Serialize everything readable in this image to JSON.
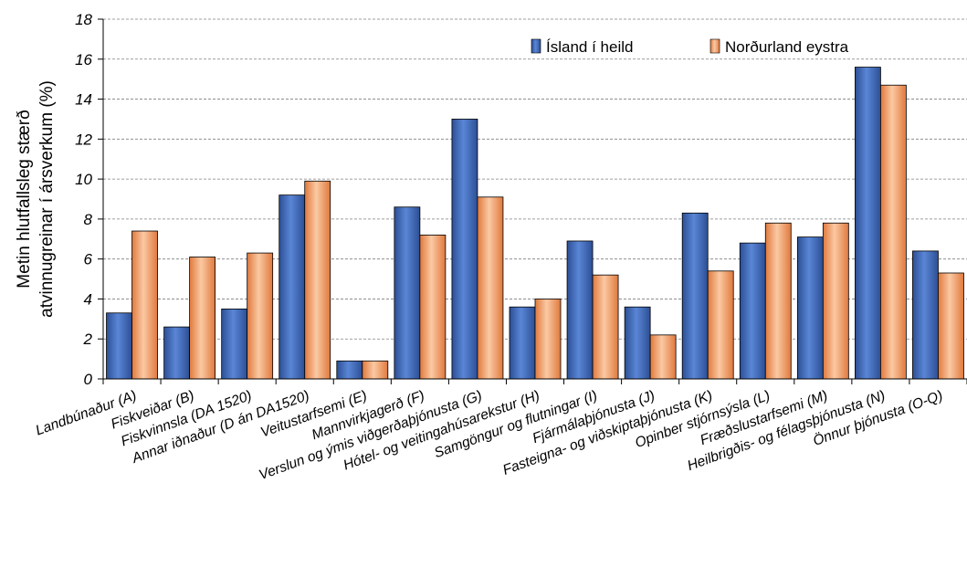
{
  "chart_data": {
    "type": "bar",
    "ylabel_line1": "Metin hlutfallsleg stærð",
    "ylabel_line2": "atvinnugreinar í ársverkum (%)",
    "ylim": [
      0,
      18
    ],
    "yticks": [
      "0",
      "2",
      "4",
      "6",
      "8",
      "10",
      "12",
      "14",
      "16",
      "18"
    ],
    "grid": true,
    "legend_position": "top-right",
    "categories": [
      "Landbúnaður (A)",
      "Fiskveiðar (B)",
      "Fiskvinnsla (DA 1520)",
      "Annar iðnaður (D án DA1520)",
      "Veitustarfsemi (E)",
      "Mannvirkjagerð (F)",
      "Verslun og ýmis viðgerðaþjónusta (G)",
      "Hótel- og veitingahúsarekstur (H)",
      "Samgöngur og flutningar (I)",
      "Fjármálaþjónusta (J)",
      "Fasteigna- og viðskiptaþjónusta (K)",
      "Opinber stjórnsýsla (L)",
      "Fræðslustarfsemi (M)",
      "Heilbrigðis- og félagsþjónusta (N)",
      "Önnur þjónusta (O-Q)"
    ],
    "series": [
      {
        "name": "Ísland í heild",
        "color": "#3f68b5",
        "values": [
          3.3,
          2.6,
          3.5,
          9.2,
          0.9,
          8.6,
          13.0,
          3.6,
          6.9,
          3.6,
          8.3,
          6.8,
          7.1,
          15.6,
          6.4
        ]
      },
      {
        "name": "Norðurland eystra",
        "color": "#f2a26f",
        "values": [
          7.4,
          6.1,
          6.3,
          9.9,
          0.9,
          7.2,
          9.1,
          4.0,
          5.2,
          2.2,
          5.4,
          7.8,
          7.8,
          14.7,
          5.3
        ]
      }
    ]
  }
}
